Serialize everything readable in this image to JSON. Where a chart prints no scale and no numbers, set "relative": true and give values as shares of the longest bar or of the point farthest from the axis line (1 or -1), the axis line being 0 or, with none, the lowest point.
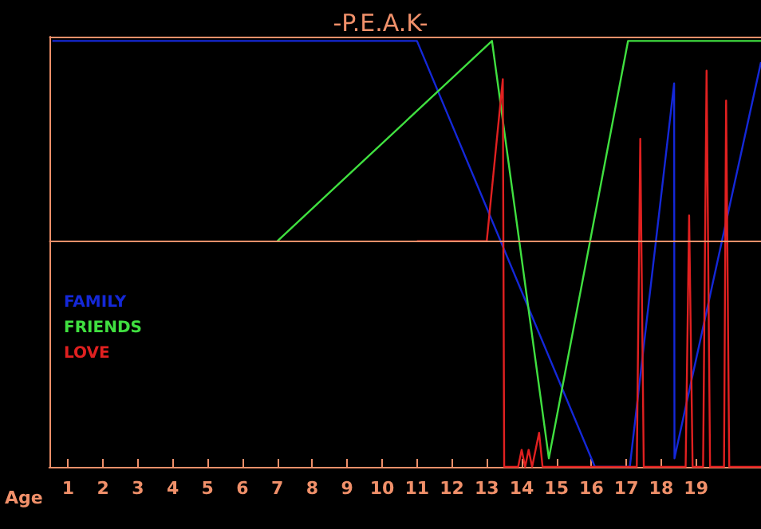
{
  "chart_data": {
    "type": "line",
    "title": "-P.E.A.K-",
    "xlabel": "Age",
    "relative": true,
    "xlim": [
      0.46,
      20.86
    ],
    "xticks": [
      1,
      2,
      3,
      4,
      5,
      6,
      7,
      8,
      9,
      10,
      11,
      12,
      13,
      14,
      15,
      16,
      17,
      18,
      19
    ],
    "legend": "left",
    "grid": false,
    "marker": "none",
    "line_style": "solid",
    "ref_lines": [
      {
        "axis": "y",
        "value": 0.53,
        "color": "#f0906a"
      },
      {
        "axis": "y",
        "value": 1.01,
        "color": "#f0906a"
      }
    ],
    "series": [
      {
        "name": "FAMILY",
        "color": "#1428d8",
        "x": [
          0.55,
          11,
          16.1,
          17.1,
          18.37,
          18.38,
          20.86
        ],
        "values": [
          1,
          1,
          0,
          0,
          0.9,
          0.02,
          0.95
        ]
      },
      {
        "name": "FRIENDS",
        "color": "#40e040",
        "x": [
          7,
          13.15,
          14.78,
          17.05,
          20.86
        ],
        "values": [
          0.53,
          1,
          0.02,
          1,
          1
        ]
      },
      {
        "name": "LOVE",
        "color": "#e02020",
        "x": [
          11,
          13,
          13.46,
          13.5,
          13.9,
          14.0,
          14.1,
          14.2,
          14.3,
          14.5,
          14.6,
          17.3,
          17.4,
          17.5,
          18.7,
          18.8,
          18.9,
          19.2,
          19.3,
          19.4,
          19.8,
          19.86,
          19.95,
          20.86
        ],
        "values": [
          0.53,
          0.53,
          0.91,
          0,
          0,
          0.04,
          0,
          0.04,
          0,
          0.08,
          0,
          0,
          0.77,
          0,
          0,
          0.59,
          0,
          0,
          0.93,
          0,
          0,
          0.86,
          0,
          0
        ]
      }
    ]
  }
}
